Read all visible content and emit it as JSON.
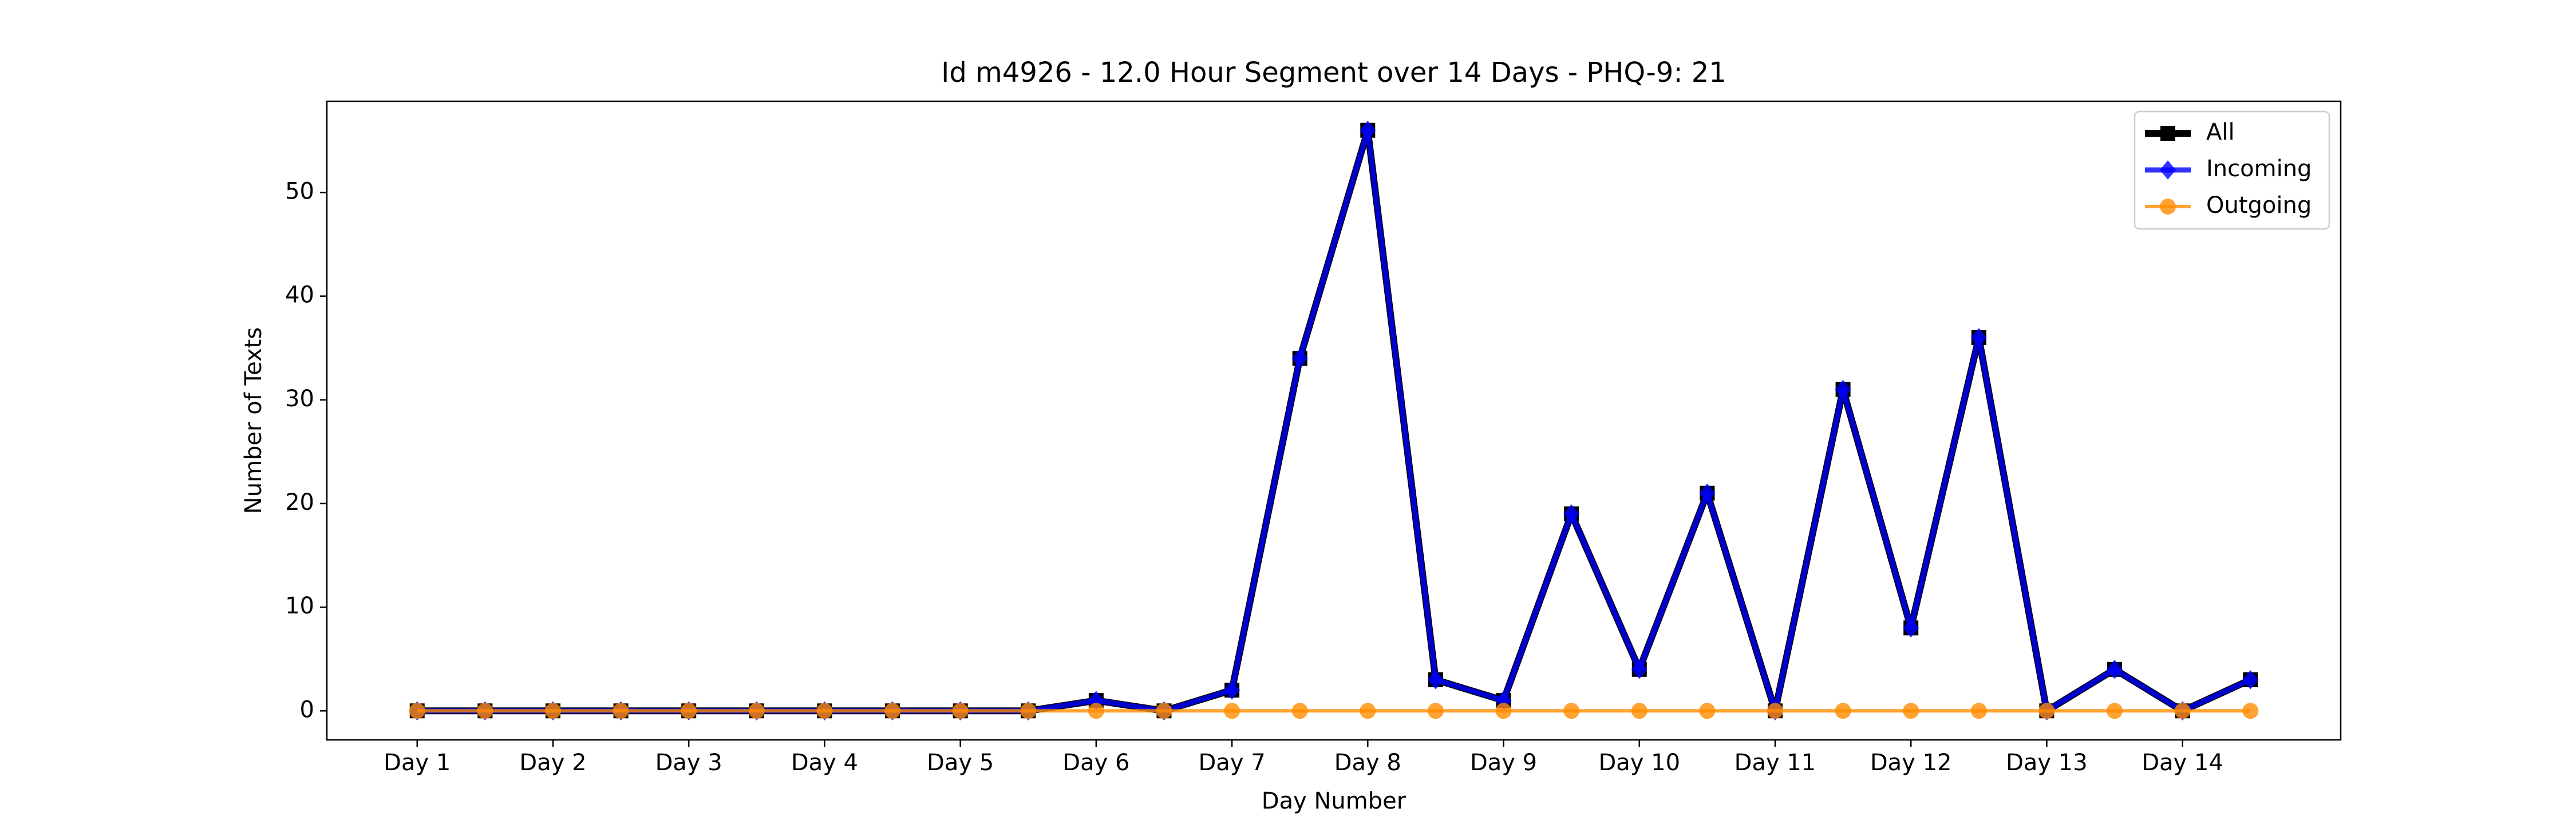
{
  "chart_data": {
    "type": "line",
    "title": "Id m4926 - 12.0 Hour Segment over 14 Days - PHQ-9: 21",
    "x_label": "Day Number",
    "y_label": "Number of Texts",
    "categories": [
      "Day 1",
      null,
      "Day 2",
      null,
      "Day 3",
      null,
      "Day 4",
      null,
      "Day 5",
      null,
      "Day 6",
      null,
      "Day 7",
      null,
      "Day 8",
      null,
      "Day 9",
      null,
      "Day 10",
      null,
      "Day 11",
      null,
      "Day 12",
      null,
      "Day 13",
      null,
      "Day 14",
      null
    ],
    "series": [
      {
        "name": "All",
        "color": "#000000",
        "values": [
          0,
          0,
          0,
          0,
          0,
          0,
          0,
          0,
          0,
          0,
          1,
          0,
          2,
          34,
          56,
          3,
          1,
          19,
          4,
          21,
          0,
          31,
          8,
          36,
          0,
          4,
          0,
          3
        ]
      },
      {
        "name": "Incoming",
        "color": "#0000ff",
        "values": [
          0,
          0,
          0,
          0,
          0,
          0,
          0,
          0,
          0,
          0,
          1,
          0,
          2,
          34,
          56,
          3,
          1,
          19,
          4,
          21,
          0,
          31,
          8,
          36,
          0,
          4,
          0,
          3
        ]
      },
      {
        "name": "Outgoing",
        "color": "#ff8c00",
        "values": [
          0,
          0,
          0,
          0,
          0,
          0,
          0,
          0,
          0,
          0,
          0,
          0,
          0,
          0,
          0,
          0,
          0,
          0,
          0,
          0,
          0,
          0,
          0,
          0,
          0,
          0,
          0,
          0
        ]
      }
    ],
    "ylim": [
      -2.8,
      58.8
    ],
    "yticks": [
      0,
      10,
      20,
      30,
      40,
      50
    ],
    "legend": "upper right"
  }
}
